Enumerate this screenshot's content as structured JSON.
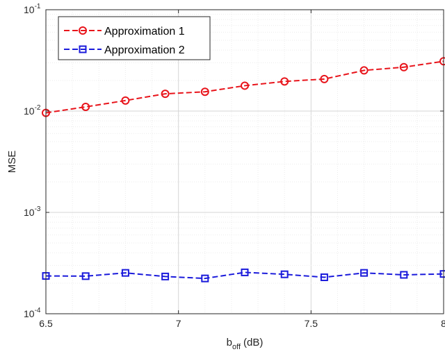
{
  "chart_data": {
    "type": "line",
    "title": "",
    "xlabel": {
      "main": "b",
      "sub": "off",
      "unit": "(dB)"
    },
    "ylabel": "MSE",
    "xlim": [
      6.5,
      8
    ],
    "ylim": [
      0.0001,
      0.1
    ],
    "yscale": "log",
    "grid": true,
    "legend_position": "top-left",
    "x_ticks": [
      "6.5",
      "7",
      "7.5",
      "8"
    ],
    "y_ticks": [
      {
        "base": "10",
        "exp": "-4"
      },
      {
        "base": "10",
        "exp": "-3"
      },
      {
        "base": "10",
        "exp": "-2"
      },
      {
        "base": "10",
        "exp": "-1"
      }
    ],
    "x": [
      6.5,
      6.65,
      6.8,
      6.95,
      7.1,
      7.25,
      7.4,
      7.55,
      7.7,
      7.85,
      8.0
    ],
    "series": [
      {
        "name": "Approximation 1",
        "color": "#e8141b",
        "marker": "circle",
        "line_style": "dashed",
        "values": [
          0.0096,
          0.011,
          0.0127,
          0.0148,
          0.0155,
          0.0178,
          0.0196,
          0.0207,
          0.0252,
          0.0271,
          0.031
        ]
      },
      {
        "name": "Approximation 2",
        "color": "#1a1adb",
        "marker": "square",
        "line_style": "dashed",
        "values": [
          0.000236,
          0.000235,
          0.000253,
          0.000233,
          0.000223,
          0.000256,
          0.000245,
          0.000229,
          0.000253,
          0.000242,
          0.000247
        ]
      }
    ]
  }
}
